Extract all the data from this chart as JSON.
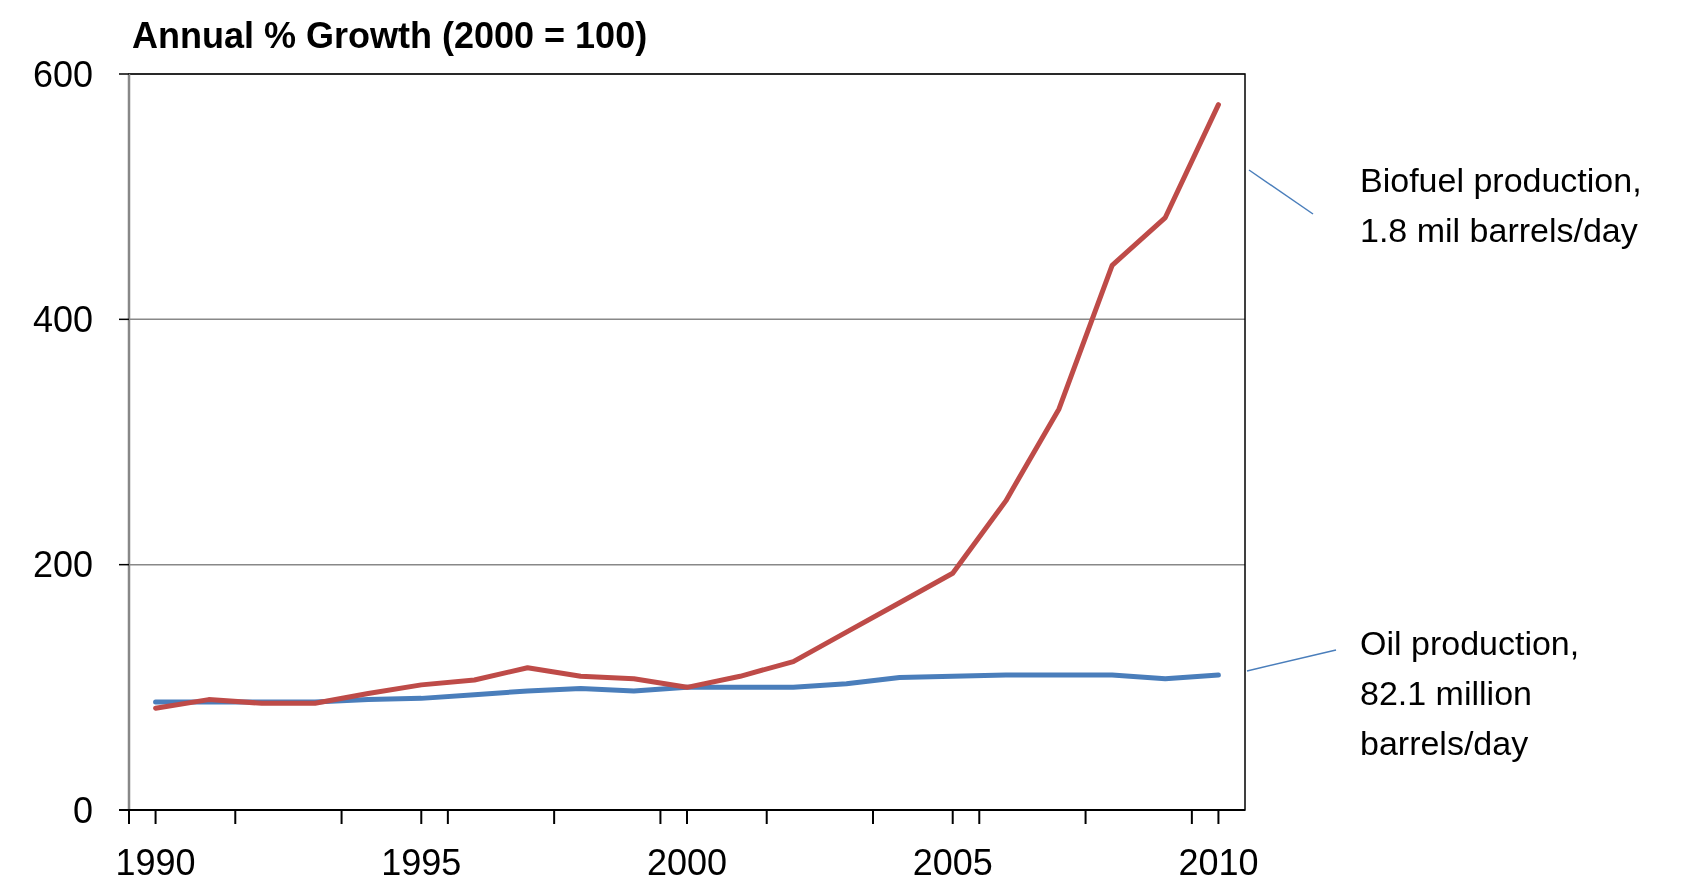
{
  "chart_data": {
    "type": "line",
    "title": "Annual % Growth (2000 = 100)",
    "x": [
      1990,
      1991,
      1992,
      1993,
      1994,
      1995,
      1996,
      1997,
      1998,
      1999,
      2000,
      2001,
      2002,
      2003,
      2004,
      2005,
      2006,
      2007,
      2008,
      2009,
      2010
    ],
    "series": [
      {
        "color": "#4a7ebb",
        "values": [
          88,
          88,
          88,
          88,
          90,
          91,
          94,
          97,
          99,
          97,
          100,
          100,
          100,
          103,
          108,
          109,
          110,
          110,
          110,
          107,
          110
        ]
      },
      {
        "color": "#be4b48",
        "values": [
          83,
          90,
          87,
          87,
          95,
          102,
          106,
          116,
          109,
          107,
          100,
          109,
          121,
          145,
          169,
          193,
          252,
          327,
          444,
          483,
          575
        ]
      }
    ],
    "xlim": [
      1989.5,
      2010.5
    ],
    "xticks": [
      {
        "value": 1989.5,
        "label": null
      },
      {
        "value": 1990,
        "label": "1990"
      },
      {
        "value": 1991.5,
        "label": null
      },
      {
        "value": 1993.5,
        "label": null
      },
      {
        "value": 1995,
        "label": "1995"
      },
      {
        "value": 1995.5,
        "label": null
      },
      {
        "value": 1997.5,
        "label": null
      },
      {
        "value": 1999.5,
        "label": null
      },
      {
        "value": 2000,
        "label": "2000"
      },
      {
        "value": 2001.5,
        "label": null
      },
      {
        "value": 2003.5,
        "label": null
      },
      {
        "value": 2005,
        "label": "2005"
      },
      {
        "value": 2005.5,
        "label": null
      },
      {
        "value": 2007.5,
        "label": null
      },
      {
        "value": 2009.5,
        "label": null
      },
      {
        "value": 2010,
        "label": "2010"
      }
    ],
    "ylim": [
      0,
      600
    ],
    "yticks": [
      0,
      200,
      400,
      600
    ],
    "grid": "y",
    "marker": "none",
    "line_style": "solid",
    "annotations": [
      "Biofuel production,\n1.8 mil barrels/day",
      "Oil production,\n82.1 million\nbarrels/day"
    ]
  }
}
